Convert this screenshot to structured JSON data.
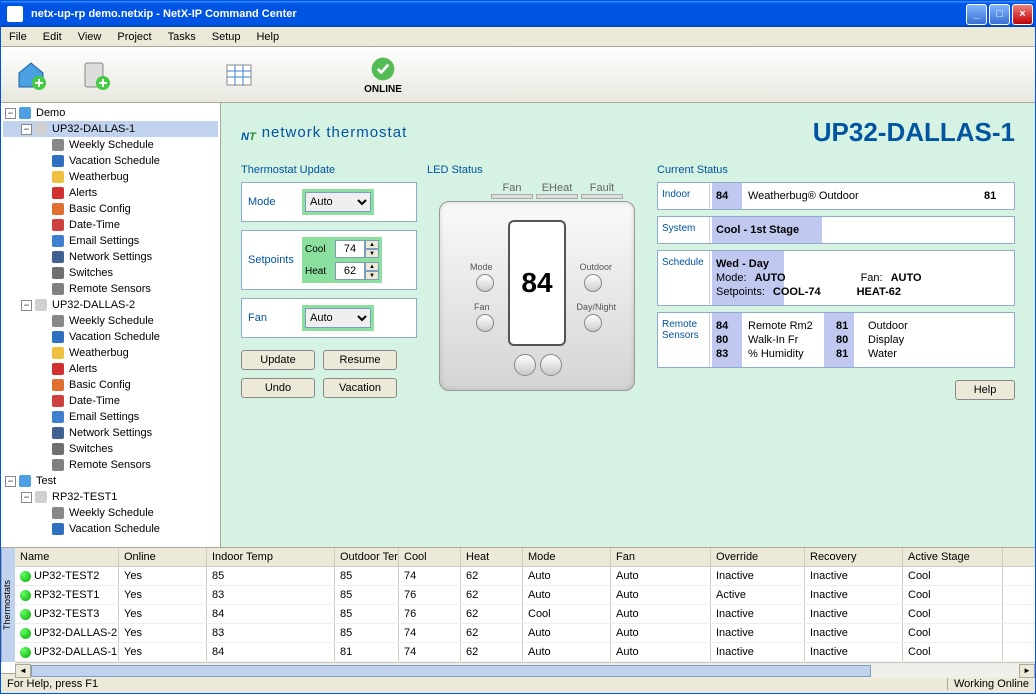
{
  "window": {
    "title": "netx-up-rp demo.netxip - NetX-IP Command Center"
  },
  "menubar": [
    "File",
    "Edit",
    "View",
    "Project",
    "Tasks",
    "Setup",
    "Help"
  ],
  "toolbar": {
    "online_label": "ONLINE"
  },
  "tree": {
    "nodes": [
      {
        "depth": 0,
        "toggle": "-",
        "icon": "home",
        "label": "Demo"
      },
      {
        "depth": 1,
        "toggle": "-",
        "icon": "device",
        "label": "UP32-DALLAS-1",
        "selected": true
      },
      {
        "depth": 2,
        "icon": "clock",
        "label": "Weekly Schedule"
      },
      {
        "depth": 2,
        "icon": "vacation",
        "label": "Vacation Schedule"
      },
      {
        "depth": 2,
        "icon": "weather",
        "label": "Weatherbug"
      },
      {
        "depth": 2,
        "icon": "alert",
        "label": "Alerts"
      },
      {
        "depth": 2,
        "icon": "config",
        "label": "Basic Config"
      },
      {
        "depth": 2,
        "icon": "date",
        "label": "Date-Time"
      },
      {
        "depth": 2,
        "icon": "email",
        "label": "Email Settings"
      },
      {
        "depth": 2,
        "icon": "network",
        "label": "Network Settings"
      },
      {
        "depth": 2,
        "icon": "switch",
        "label": "Switches"
      },
      {
        "depth": 2,
        "icon": "sensor",
        "label": "Remote Sensors"
      },
      {
        "depth": 1,
        "toggle": "-",
        "icon": "device",
        "label": "UP32-DALLAS-2"
      },
      {
        "depth": 2,
        "icon": "clock",
        "label": "Weekly Schedule"
      },
      {
        "depth": 2,
        "icon": "vacation",
        "label": "Vacation Schedule"
      },
      {
        "depth": 2,
        "icon": "weather",
        "label": "Weatherbug"
      },
      {
        "depth": 2,
        "icon": "alert",
        "label": "Alerts"
      },
      {
        "depth": 2,
        "icon": "config",
        "label": "Basic Config"
      },
      {
        "depth": 2,
        "icon": "date",
        "label": "Date-Time"
      },
      {
        "depth": 2,
        "icon": "email",
        "label": "Email Settings"
      },
      {
        "depth": 2,
        "icon": "network",
        "label": "Network Settings"
      },
      {
        "depth": 2,
        "icon": "switch",
        "label": "Switches"
      },
      {
        "depth": 2,
        "icon": "sensor",
        "label": "Remote Sensors"
      },
      {
        "depth": 0,
        "toggle": "-",
        "icon": "home",
        "label": "Test"
      },
      {
        "depth": 1,
        "toggle": "-",
        "icon": "device",
        "label": "RP32-TEST1"
      },
      {
        "depth": 2,
        "icon": "clock",
        "label": "Weekly Schedule"
      },
      {
        "depth": 2,
        "icon": "vacation",
        "label": "Vacation Schedule"
      }
    ]
  },
  "content": {
    "logo_text": "network thermostat",
    "device_title": "UP32-DALLAS-1",
    "update": {
      "title": "Thermostat Update",
      "mode_label": "Mode",
      "mode_value": "Auto",
      "setpoints_label": "Setpoints",
      "cool_label": "Cool",
      "cool_value": "74",
      "heat_label": "Heat",
      "heat_value": "62",
      "fan_label": "Fan",
      "fan_value": "Auto",
      "update_btn": "Update",
      "resume_btn": "Resume",
      "undo_btn": "Undo",
      "vacation_btn": "Vacation"
    },
    "led": {
      "title": "LED Status",
      "labels": [
        "Fan",
        "EHeat",
        "Fault"
      ]
    },
    "thermo": {
      "temp": "84",
      "mode_lbl": "Mode",
      "fan_lbl": "Fan",
      "outdoor_lbl": "Outdoor",
      "daynight_lbl": "Day/Night"
    },
    "status": {
      "title": "Current Status",
      "indoor_lbl": "Indoor",
      "indoor_val": "84",
      "wb_lbl": "Weatherbug® Outdoor",
      "wb_val": "81",
      "system_lbl": "System",
      "system_val": "Cool - 1st Stage",
      "schedule_lbl": "Schedule",
      "sched_day": "Wed - Day",
      "sched_mode_lbl": "Mode:",
      "sched_mode_val": "AUTO",
      "sched_fan_lbl": "Fan:",
      "sched_fan_val": "AUTO",
      "sched_sp_lbl": "Setpoints:",
      "sched_cool": "COOL-74",
      "sched_heat": "HEAT-62",
      "sensors_lbl": "Remote Sensors",
      "sensors": [
        {
          "v1": "84",
          "k1": "Remote Rm2",
          "v2": "81",
          "k2": "Outdoor"
        },
        {
          "v1": "80",
          "k1": "Walk-In Fr",
          "v2": "80",
          "k2": "Display"
        },
        {
          "v1": "83",
          "k1": "% Humidity",
          "v2": "81",
          "k2": "Water"
        }
      ],
      "help_btn": "Help"
    }
  },
  "grid": {
    "vtab": "Thermostats",
    "columns": [
      "Name",
      "Online",
      "Indoor Temp",
      "Outdoor Temp",
      "Cool",
      "Heat",
      "Mode",
      "Fan",
      "Override",
      "Recovery",
      "Active Stage"
    ],
    "rows": [
      [
        "UP32-TEST2",
        "Yes",
        "85",
        "85",
        "74",
        "62",
        "Auto",
        "Auto",
        "Inactive",
        "Inactive",
        "Cool"
      ],
      [
        "RP32-TEST1",
        "Yes",
        "83",
        "85",
        "76",
        "62",
        "Auto",
        "Auto",
        "Active",
        "Inactive",
        "Cool"
      ],
      [
        "UP32-TEST3",
        "Yes",
        "84",
        "85",
        "76",
        "62",
        "Cool",
        "Auto",
        "Inactive",
        "Inactive",
        "Cool"
      ],
      [
        "UP32-DALLAS-2",
        "Yes",
        "83",
        "85",
        "74",
        "62",
        "Auto",
        "Auto",
        "Inactive",
        "Inactive",
        "Cool"
      ],
      [
        "UP32-DALLAS-1",
        "Yes",
        "84",
        "81",
        "74",
        "62",
        "Auto",
        "Auto",
        "Inactive",
        "Inactive",
        "Cool"
      ]
    ]
  },
  "statusbar": {
    "left": "For Help, press F1",
    "right": "Working Online"
  },
  "colors": {
    "tree_icons": {
      "home": "#4aa0e0",
      "device": "#d0d0d0",
      "clock": "#888",
      "vacation": "#3070c0",
      "weather": "#f0c040",
      "alert": "#d03030",
      "config": "#e07030",
      "date": "#d04040",
      "email": "#4080d0",
      "network": "#406090",
      "switch": "#707070",
      "sensor": "#808080"
    }
  }
}
